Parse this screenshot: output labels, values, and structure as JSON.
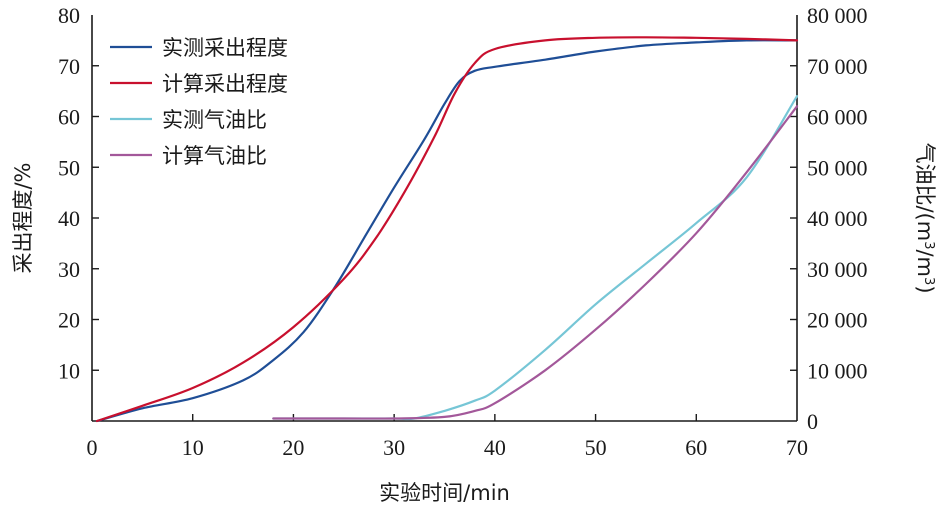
{
  "chart_data": {
    "type": "line",
    "xlabel": "实验时间/min",
    "ylabel": "采出程度/%",
    "y2label_main": "气油比/(m",
    "y2label_sup1": "3",
    "y2label_mid": "/m",
    "y2label_sup2": "3",
    "y2label_end": ")",
    "xlim": [
      0,
      70
    ],
    "ylim": [
      0,
      80
    ],
    "y2lim": [
      0,
      80000
    ],
    "x_ticks": [
      0,
      10,
      20,
      30,
      40,
      50,
      60,
      70
    ],
    "x_tick_labels": [
      "0",
      "10",
      "20",
      "30",
      "40",
      "50",
      "60",
      "70"
    ],
    "y_ticks": [
      10,
      20,
      30,
      40,
      50,
      60,
      70,
      80
    ],
    "y_tick_labels": [
      "10",
      "20",
      "30",
      "40",
      "50",
      "60",
      "70",
      "80"
    ],
    "y2_ticks": [
      0,
      10000,
      20000,
      30000,
      40000,
      50000,
      60000,
      70000,
      80000
    ],
    "y2_tick_labels": [
      "0",
      "10 000",
      "20 000",
      "30 000",
      "40 000",
      "50 000",
      "60 000",
      "70 000",
      "80 000"
    ],
    "grid": false,
    "legend_position": "top-left",
    "series": [
      {
        "name": "实测采出程度",
        "axis": "left",
        "color": "#1f4e96",
        "x": [
          0.5,
          5,
          10,
          15,
          18,
          21,
          24,
          27,
          30,
          33,
          35,
          36.5,
          38,
          40,
          45,
          50,
          55,
          60,
          65,
          70
        ],
        "y": [
          0,
          2.5,
          4.5,
          8,
          12,
          17.5,
          26,
          36,
          46,
          55.5,
          62.5,
          67,
          69,
          69.8,
          71.2,
          72.8,
          74,
          74.6,
          75,
          75
        ]
      },
      {
        "name": "计算采出程度",
        "axis": "left",
        "color": "#c8102e",
        "x": [
          0.5,
          5,
          10,
          15,
          20,
          25,
          28,
          31,
          34,
          36,
          38,
          40,
          45,
          50,
          55,
          60,
          65,
          70
        ],
        "y": [
          0,
          3,
          6.5,
          11.5,
          18.5,
          28,
          35.5,
          45,
          56,
          64.5,
          70.5,
          73.3,
          75,
          75.5,
          75.6,
          75.5,
          75.3,
          75
        ]
      },
      {
        "name": "实测气油比",
        "axis": "right",
        "color": "#76c6d6",
        "x": [
          18,
          25,
          30,
          32,
          35,
          38,
          40,
          45,
          50,
          55,
          60,
          65,
          70
        ],
        "y": [
          500,
          500,
          500,
          500,
          2000,
          4000,
          6000,
          14000,
          23000,
          31000,
          39000,
          48000,
          64000
        ]
      },
      {
        "name": "计算气油比",
        "axis": "right",
        "color": "#a3589a",
        "x": [
          18,
          25,
          30,
          35,
          38,
          40,
          45,
          50,
          55,
          60,
          65,
          70
        ],
        "y": [
          500,
          500,
          500,
          800,
          2000,
          3500,
          10000,
          18000,
          27000,
          37000,
          49000,
          62000
        ]
      }
    ]
  }
}
